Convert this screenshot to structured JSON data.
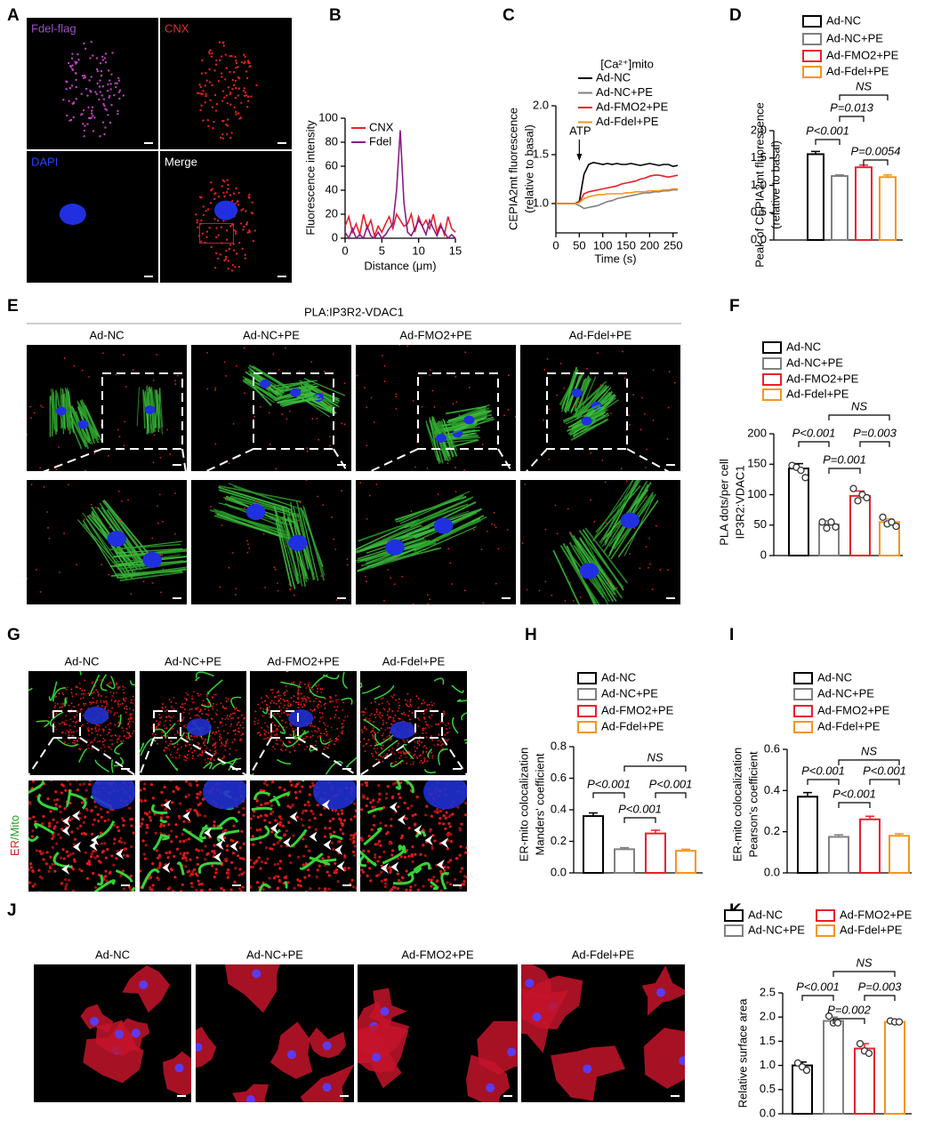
{
  "panels": {
    "A": {
      "letter": "A",
      "labels": [
        "Fdel-flag",
        "CNX",
        "DAPI",
        "Merge"
      ]
    },
    "E": {
      "letter": "E",
      "title": "PLA:IP3R2-VDAC1",
      "columns": [
        "Ad-NC",
        "Ad-NC+PE",
        "Ad-FMO2+PE",
        "Ad-Fdel+PE"
      ]
    },
    "G": {
      "letter": "G",
      "columns": [
        "Ad-NC",
        "Ad-NC+PE",
        "Ad-FMO2+PE",
        "Ad-Fdel+PE"
      ],
      "side_label": [
        "ER",
        "/Mito"
      ]
    },
    "J": {
      "letter": "J",
      "columns": [
        "Ad-NC",
        "Ad-NC+PE",
        "Ad-FMO2+PE",
        "Ad-Fdel+PE"
      ]
    }
  },
  "chart_data": [
    {
      "type": "line",
      "panel": "B",
      "xlabel": "Distance (μm)",
      "ylabel": [
        "Fluorescence intensity"
      ],
      "x": [
        0,
        0.5,
        1,
        1.5,
        2,
        2.5,
        3,
        3.5,
        4,
        4.5,
        5,
        5.5,
        6,
        6.5,
        7,
        7.5,
        8,
        8.5,
        9,
        9.5,
        10,
        10.5,
        11,
        11.5,
        12,
        12.5,
        13,
        13.5,
        14,
        14.5,
        15
      ],
      "series": [
        {
          "name": "CNX",
          "color": "#e8202a",
          "values": [
            10,
            18,
            5,
            12,
            3,
            20,
            8,
            15,
            2,
            10,
            5,
            12,
            18,
            8,
            20,
            15,
            10,
            12,
            20,
            5,
            18,
            10,
            15,
            8,
            20,
            5,
            12,
            3,
            18,
            8,
            5
          ]
        },
        {
          "name": "Fdel",
          "color": "#8b1a89",
          "values": [
            5,
            0,
            8,
            0,
            3,
            0,
            10,
            2,
            0,
            5,
            0,
            3,
            8,
            12,
            40,
            90,
            30,
            5,
            2,
            8,
            15,
            10,
            3,
            15,
            8,
            2,
            10,
            5,
            0,
            3,
            0
          ]
        }
      ],
      "xlim": [
        0,
        15
      ],
      "xticks": [
        0,
        5,
        10,
        15
      ],
      "ylim": [
        0,
        100
      ],
      "yticks": [
        0,
        20,
        40,
        60,
        80,
        100
      ]
    },
    {
      "type": "line",
      "panel": "C",
      "title": "[Ca²⁺]mito",
      "xlabel": "Time (s)",
      "ylabel": [
        "CEPIA2mt fluorescence",
        "(relative to basal)"
      ],
      "annotation": {
        "text": "ATP",
        "x": 50
      },
      "x": [
        0,
        10,
        20,
        30,
        40,
        50,
        60,
        70,
        80,
        90,
        100,
        110,
        120,
        130,
        140,
        150,
        160,
        170,
        180,
        190,
        200,
        210,
        220,
        230,
        240,
        250,
        260
      ],
      "series": [
        {
          "name": "Ad-NC",
          "color": "#000000",
          "values": [
            1.0,
            1.0,
            1.0,
            1.0,
            1.0,
            1.02,
            1.3,
            1.4,
            1.42,
            1.41,
            1.4,
            1.41,
            1.4,
            1.41,
            1.4,
            1.4,
            1.41,
            1.4,
            1.39,
            1.4,
            1.41,
            1.4,
            1.39,
            1.4,
            1.4,
            1.38,
            1.39
          ]
        },
        {
          "name": "Ad-NC+PE",
          "color": "#808080",
          "values": [
            1.0,
            1.0,
            1.0,
            1.0,
            1.0,
            0.98,
            0.95,
            0.96,
            0.97,
            0.98,
            1.0,
            1.02,
            1.03,
            1.05,
            1.06,
            1.07,
            1.08,
            1.09,
            1.1,
            1.11,
            1.11,
            1.12,
            1.12,
            1.13,
            1.13,
            1.14,
            1.14
          ]
        },
        {
          "name": "Ad-FMO2+PE",
          "color": "#e8202a",
          "values": [
            1.0,
            1.0,
            1.0,
            1.0,
            1.0,
            1.01,
            1.1,
            1.12,
            1.13,
            1.14,
            1.15,
            1.16,
            1.17,
            1.18,
            1.2,
            1.21,
            1.22,
            1.23,
            1.25,
            1.26,
            1.28,
            1.29,
            1.29,
            1.28,
            1.27,
            1.28,
            1.29
          ]
        },
        {
          "name": "Ad-Fdel+PE",
          "color": "#f7941d",
          "values": [
            1.0,
            1.0,
            1.0,
            1.0,
            1.0,
            1.01,
            1.05,
            1.07,
            1.08,
            1.09,
            1.09,
            1.1,
            1.1,
            1.1,
            1.1,
            1.11,
            1.11,
            1.12,
            1.12,
            1.12,
            1.13,
            1.13,
            1.13,
            1.14,
            1.14,
            1.15,
            1.15
          ]
        }
      ],
      "xlim": [
        0,
        260
      ],
      "xticks": [
        0,
        50,
        100,
        150,
        200,
        250
      ],
      "ylim": [
        0.7,
        2.0
      ],
      "yticks": [
        {
          "value": 1,
          "label": "1.0"
        },
        1.5,
        {
          "value": 2,
          "label": "2.0"
        }
      ]
    },
    {
      "type": "bar",
      "panel": "D",
      "ylabel": [
        "Peak of CEPIA2mt fluorescence",
        "(relative to basal)"
      ],
      "categories": [
        "Ad-NC",
        "Ad-NC+PE",
        "Ad-FMO2+PE",
        "Ad-Fdel+PE"
      ],
      "colors": [
        "#000000",
        "#808080",
        "#e8202a",
        "#f7941d"
      ],
      "values": [
        1.57,
        1.17,
        1.33,
        1.15
      ],
      "errors": [
        0.05,
        0.02,
        0.04,
        0.04
      ],
      "annotations": [
        "NS",
        "P=0.013",
        "P<0.001",
        "P=0.0054"
      ],
      "ylim": [
        0,
        2
      ],
      "yticks": [
        {
          "value": 0,
          "label": "0.0"
        },
        0.5,
        {
          "value": 1,
          "label": "1.0"
        },
        1.5,
        {
          "value": 2,
          "label": "2.0"
        }
      ]
    },
    {
      "type": "bar",
      "panel": "F",
      "ylabel": [
        "PLA dots/per cell",
        "IP3R2:VDAC1"
      ],
      "categories": [
        "Ad-NC",
        "Ad-NC+PE",
        "Ad-FMO2+PE",
        "Ad-Fdel+PE"
      ],
      "colors": [
        "#000000",
        "#808080",
        "#e8202a",
        "#f7941d"
      ],
      "values": [
        143,
        51,
        98,
        55
      ],
      "errors": [
        8,
        6,
        8,
        5
      ],
      "points": [
        [
          148,
          145,
          140,
          128
        ],
        [
          55,
          45,
          55,
          47
        ],
        [
          110,
          90,
          100,
          95
        ],
        [
          63,
          52,
          55,
          48
        ]
      ],
      "annotations": [
        "NS",
        "P<0.001",
        "P=0.003",
        "P=0.001"
      ],
      "ylim": [
        0,
        200
      ],
      "yticks": [
        0,
        50,
        100,
        150,
        200
      ]
    },
    {
      "type": "bar",
      "panel": "H",
      "ylabel": [
        "ER-mito colocalization",
        "Manders' coefficient"
      ],
      "categories": [
        "Ad-NC",
        "Ad-NC+PE",
        "Ad-FMO2+PE",
        "Ad-Fdel+PE"
      ],
      "colors": [
        "#000000",
        "#808080",
        "#e8202a",
        "#f7941d"
      ],
      "values": [
        0.36,
        0.15,
        0.25,
        0.14
      ],
      "errors": [
        0.02,
        0.01,
        0.02,
        0.01
      ],
      "annotations": [
        "NS",
        "P<0.001",
        "P<0.001",
        "P<0.001"
      ],
      "ylim": [
        0,
        0.8
      ],
      "yticks": [
        {
          "value": 0,
          "label": "0.0"
        },
        0.2,
        0.4,
        0.6,
        0.8
      ]
    },
    {
      "type": "bar",
      "panel": "I",
      "ylabel": [
        "ER-mito colocalization",
        "Pearson's coefficient"
      ],
      "categories": [
        "Ad-NC",
        "Ad-NC+PE",
        "Ad-FMO2+PE",
        "Ad-Fdel+PE"
      ],
      "colors": [
        "#000000",
        "#808080",
        "#e8202a",
        "#f7941d"
      ],
      "values": [
        0.37,
        0.175,
        0.26,
        0.18
      ],
      "errors": [
        0.02,
        0.01,
        0.015,
        0.01
      ],
      "annotations": [
        "NS",
        "P<0.001",
        "P<0.001",
        "P<0.001"
      ],
      "ylim": [
        0,
        0.6
      ],
      "yticks": [
        {
          "value": 0,
          "label": "0.0"
        },
        0.2,
        0.4,
        0.6
      ]
    },
    {
      "type": "bar",
      "panel": "K",
      "ylabel": [
        "Relative surface area"
      ],
      "categories": [
        "Ad-NC",
        "Ad-NC+PE",
        "Ad-FMO2+PE",
        "Ad-Fdel+PE"
      ],
      "colors": [
        "#000000",
        "#808080",
        "#e8202a",
        "#f7941d"
      ],
      "values": [
        1.0,
        1.92,
        1.35,
        1.9
      ],
      "errors": [
        0.07,
        0.08,
        0.1,
        0.02
      ],
      "points": [
        [
          1.05,
          0.97,
          0.9
        ],
        [
          2.02,
          1.88,
          1.88
        ],
        [
          1.45,
          1.3,
          1.25
        ],
        [
          1.92,
          1.9,
          1.9
        ]
      ],
      "annotations": [
        "NS",
        "P<0.001",
        "P=0.003",
        "P=0.002"
      ],
      "ylim": [
        0,
        2.5
      ],
      "yticks": [
        {
          "value": 0,
          "label": "0.0"
        },
        0.5,
        {
          "value": 1,
          "label": "1.0"
        },
        1.5,
        {
          "value": 2,
          "label": "2.0"
        },
        2.5
      ]
    }
  ]
}
